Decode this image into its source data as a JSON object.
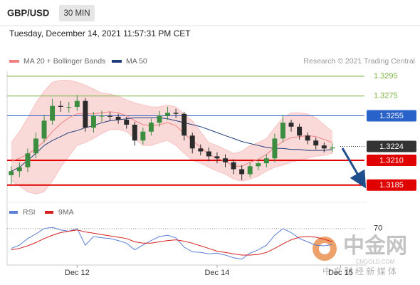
{
  "header": {
    "symbol": "GBP/USD",
    "interval": "30 MIN",
    "timestamp": "Tuesday, December 14, 2021 11:57:31 PM CET"
  },
  "watermark": {
    "name": "中金网",
    "site": "CNGOLD.COM",
    "tagline": "中 文 财 经 新 媒 体"
  },
  "chart_data": [
    {
      "type": "candlestick",
      "credit": "Research © 2021 Trading Central",
      "open": [
        1.3195,
        1.3199,
        1.3203,
        1.3217,
        1.3232,
        1.325,
        1.3265,
        1.3264,
        1.3264,
        1.327,
        1.3243,
        1.3255,
        1.3255,
        1.3254,
        1.3251,
        1.3246,
        1.323,
        1.3239,
        1.3248,
        1.3255,
        1.3258,
        1.3257,
        1.3235,
        1.3222,
        1.3219,
        1.3214,
        1.3212,
        1.3208,
        1.3201,
        1.3196,
        1.3204,
        1.3207,
        1.3212,
        1.3232,
        1.3248,
        1.3244,
        1.3235,
        1.323,
        1.3225,
        1.3222
      ],
      "high": [
        1.3204,
        1.3208,
        1.3222,
        1.3238,
        1.3256,
        1.3272,
        1.327,
        1.3269,
        1.3276,
        1.3273,
        1.3259,
        1.326,
        1.3259,
        1.3257,
        1.3254,
        1.3249,
        1.3243,
        1.3252,
        1.326,
        1.3264,
        1.3262,
        1.3259,
        1.3238,
        1.3226,
        1.3223,
        1.3218,
        1.3216,
        1.3211,
        1.3205,
        1.3208,
        1.3211,
        1.3216,
        1.3237,
        1.3256,
        1.3251,
        1.3247,
        1.3238,
        1.3233,
        1.3228,
        1.3227
      ],
      "low": [
        1.3186,
        1.3193,
        1.3198,
        1.3212,
        1.3228,
        1.3246,
        1.3259,
        1.3258,
        1.326,
        1.3239,
        1.3238,
        1.3249,
        1.325,
        1.3247,
        1.3242,
        1.3225,
        1.3226,
        1.3235,
        1.3244,
        1.3251,
        1.3253,
        1.323,
        1.3217,
        1.3215,
        1.3209,
        1.3207,
        1.3203,
        1.3196,
        1.319,
        1.3193,
        1.32,
        1.3203,
        1.3208,
        1.3228,
        1.3239,
        1.3231,
        1.3226,
        1.3221,
        1.3218,
        1.3218
      ],
      "close": [
        1.3199,
        1.3203,
        1.3217,
        1.3232,
        1.325,
        1.3265,
        1.3264,
        1.3264,
        1.327,
        1.3243,
        1.3255,
        1.3255,
        1.3254,
        1.3251,
        1.3246,
        1.323,
        1.3239,
        1.3248,
        1.3255,
        1.3258,
        1.3257,
        1.3235,
        1.3222,
        1.3219,
        1.3214,
        1.3212,
        1.3208,
        1.3201,
        1.3196,
        1.3204,
        1.3207,
        1.3212,
        1.3232,
        1.3248,
        1.3244,
        1.3235,
        1.323,
        1.3225,
        1.3222,
        1.3223
      ],
      "up_color": "#3c8d40",
      "down_color": "#2b2b2b",
      "series": [
        {
          "name": "MA 20 + Bollinger Bands",
          "color": "#f08080",
          "values": [
            1.3209,
            1.3212,
            1.3216,
            1.3222,
            1.3229,
            1.3239,
            1.3247,
            1.3253,
            1.3257,
            1.3257,
            1.3257,
            1.3258,
            1.3259,
            1.3258,
            1.3255,
            1.325,
            1.3246,
            1.3245,
            1.3246,
            1.3248,
            1.3245,
            1.3237,
            1.323,
            1.3223,
            1.3216,
            1.3212,
            1.3209,
            1.3204,
            1.3204,
            1.3208,
            1.3211,
            1.3216,
            1.3223,
            1.3229,
            1.3233,
            1.3234,
            1.3235,
            1.3234,
            1.3231,
            1.3228
          ],
          "upper": [
            1.3228,
            1.3239,
            1.3253,
            1.3268,
            1.328,
            1.3289,
            1.3291,
            1.3291,
            1.3289,
            1.3286,
            1.3282,
            1.3278,
            1.3277,
            1.3275,
            1.3271,
            1.3268,
            1.3266,
            1.3264,
            1.3264,
            1.3266,
            1.3264,
            1.3257,
            1.325,
            1.3239,
            1.3228,
            1.3225,
            1.3221,
            1.3217,
            1.3219,
            1.3225,
            1.3228,
            1.3232,
            1.3243,
            1.3253,
            1.3258,
            1.3258,
            1.3257,
            1.3253,
            1.3246,
            1.3239
          ],
          "lower": [
            1.3189,
            1.3184,
            1.3178,
            1.3176,
            1.3178,
            1.3189,
            1.3203,
            1.3214,
            1.3225,
            1.3228,
            1.3232,
            1.3237,
            1.3241,
            1.3241,
            1.3239,
            1.3232,
            1.3225,
            1.3225,
            1.3228,
            1.323,
            1.3225,
            1.3217,
            1.321,
            1.3207,
            1.3203,
            1.3199,
            1.3196,
            1.3191,
            1.3189,
            1.3191,
            1.3194,
            1.3199,
            1.3203,
            1.3205,
            1.3208,
            1.321,
            1.3212,
            1.3214,
            1.3215,
            1.3217
          ]
        },
        {
          "name": "MA 50",
          "color": "#1f3d7a",
          "values": [
            1.3199,
            1.3203,
            1.321,
            1.3217,
            1.3225,
            1.323,
            1.3234,
            1.3238,
            1.324,
            1.3243,
            1.3245,
            1.3248,
            1.325,
            1.3251,
            1.3252,
            1.3253,
            1.3253,
            1.3253,
            1.3253,
            1.3252,
            1.325,
            1.3248,
            1.3246,
            1.3244,
            1.3241,
            1.3238,
            1.3235,
            1.3232,
            1.3229,
            1.3227,
            1.3225,
            1.3223,
            1.3222,
            1.3222,
            1.3221,
            1.3221,
            1.322,
            1.322,
            1.322,
            1.3221
          ]
        }
      ],
      "levels": [
        {
          "value": 1.3295,
          "label": "1.3295",
          "color": "#7cb342",
          "line": "solid",
          "box": false
        },
        {
          "value": 1.3275,
          "label": "1.3275",
          "color": "#7cb342",
          "line": "solid",
          "box": false
        },
        {
          "value": 1.3255,
          "label": "1.3255",
          "color": "#2962c9",
          "line": "solid",
          "box": true
        },
        {
          "value": 1.3224,
          "label": "1.3224",
          "color": "#333333",
          "line": "dotted",
          "box": true
        },
        {
          "value": 1.321,
          "label": "1.3210",
          "color": "#e00000",
          "line": "bold",
          "box": true
        },
        {
          "value": 1.3185,
          "label": "1.3185",
          "color": "#e00000",
          "line": "bold",
          "box": true
        }
      ],
      "ylim": [
        1.3174,
        1.33
      ],
      "xlim": [
        -0.5,
        41
      ],
      "xticks": [
        {
          "value": 8,
          "label": "Dec 12"
        },
        {
          "value": 25,
          "label": "Dec 14"
        },
        {
          "value": 40,
          "label": "Dec 15"
        }
      ],
      "grid": false
    },
    {
      "type": "line",
      "series": [
        {
          "name": "RSI",
          "color": "#5b7fd4",
          "values": [
            40,
            45,
            55,
            62,
            70,
            72,
            68,
            66,
            70,
            45,
            58,
            56,
            55,
            52,
            48,
            38,
            45,
            52,
            58,
            60,
            56,
            42,
            35,
            34,
            32,
            33,
            30,
            26,
            24,
            33,
            38,
            45,
            60,
            70,
            64,
            55,
            50,
            45,
            44,
            46
          ]
        },
        {
          "name": "9MA",
          "color": "#d62020",
          "values": [
            38,
            40,
            44,
            49,
            55,
            60,
            64,
            66,
            68,
            65,
            63,
            61,
            59,
            57,
            55,
            50,
            48,
            48,
            50,
            52,
            53,
            51,
            48,
            44,
            40,
            36,
            34,
            32,
            30,
            30,
            31,
            34,
            40,
            47,
            53,
            57,
            58,
            57,
            54,
            50
          ]
        }
      ],
      "ylim": [
        15,
        87
      ],
      "yticks": [
        70
      ],
      "grid": true
    }
  ]
}
